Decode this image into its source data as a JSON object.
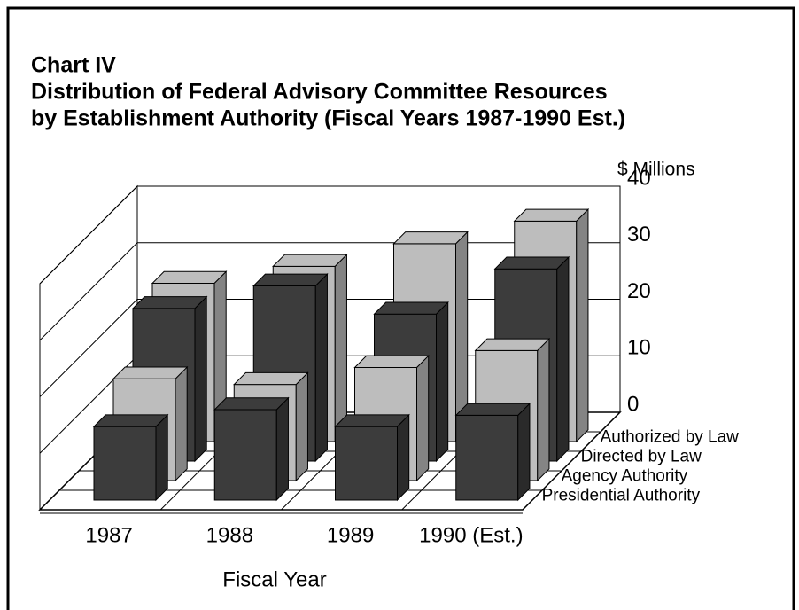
{
  "chart_data": {
    "type": "bar3d",
    "title_lines": [
      "Chart IV",
      "Distribution of Federal Advisory Committee Resources",
      "by Establishment Authority (Fiscal Years 1987-1990 Est.)"
    ],
    "y_label": "$ Millions",
    "x_label": "Fiscal Year",
    "categories": [
      "1987",
      "1988",
      "1989",
      "1990 (Est.)"
    ],
    "series": [
      {
        "name": "Authorized by Law",
        "color": "#bdbdbd",
        "values": [
          28,
          31,
          35,
          39
        ]
      },
      {
        "name": "Directed by Law",
        "color": "#3c3c3c",
        "values": [
          27,
          31,
          26,
          34
        ]
      },
      {
        "name": "Agency Authority",
        "color": "#bdbdbd",
        "values": [
          18,
          17,
          20,
          23
        ]
      },
      {
        "name": "Presidential Authority",
        "color": "#3c3c3c",
        "values": [
          13,
          16,
          13,
          15
        ]
      }
    ],
    "ylim": [
      0,
      40
    ],
    "yticks": [
      0,
      10,
      20,
      30,
      40
    ],
    "grid": true
  }
}
